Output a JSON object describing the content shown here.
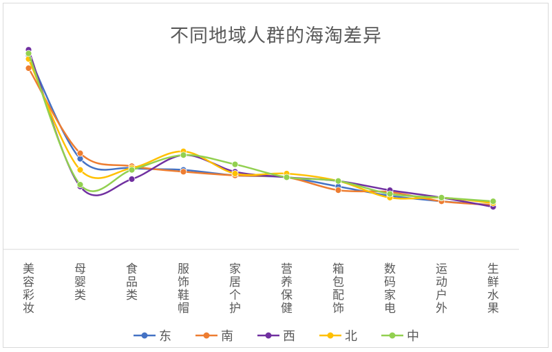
{
  "chart_data": {
    "type": "line",
    "title": "不同地域人群的海淘差异",
    "categories": [
      "美容彩妆",
      "母婴类",
      "食品类",
      "服饰鞋帽",
      "家居个护",
      "营养保健",
      "箱包配饰",
      "数码家电",
      "运动户外",
      "生鲜水果"
    ],
    "series": [
      {
        "name": "东",
        "color": "#4472C4",
        "values": [
          10.5,
          4.9,
          4.4,
          4.3,
          4.0,
          3.9,
          3.4,
          2.9,
          2.6,
          2.4
        ]
      },
      {
        "name": "南",
        "color": "#ED7D31",
        "values": [
          9.8,
          5.2,
          4.5,
          4.2,
          4.0,
          3.9,
          3.2,
          3.1,
          2.6,
          2.4
        ]
      },
      {
        "name": "西",
        "color": "#7030A0",
        "values": [
          10.8,
          3.4,
          3.8,
          5.1,
          4.2,
          3.9,
          3.7,
          3.2,
          2.8,
          2.3
        ]
      },
      {
        "name": "北",
        "color": "#FFC000",
        "values": [
          10.3,
          4.3,
          4.4,
          5.3,
          4.1,
          4.1,
          3.7,
          2.8,
          2.8,
          2.5
        ]
      },
      {
        "name": "中",
        "color": "#92D050",
        "values": [
          10.6,
          3.5,
          4.3,
          5.1,
          4.6,
          3.9,
          3.7,
          3.0,
          2.8,
          2.6
        ]
      }
    ],
    "ylim": [
      0,
      12
    ],
    "grid": false,
    "legend": "bottom"
  }
}
